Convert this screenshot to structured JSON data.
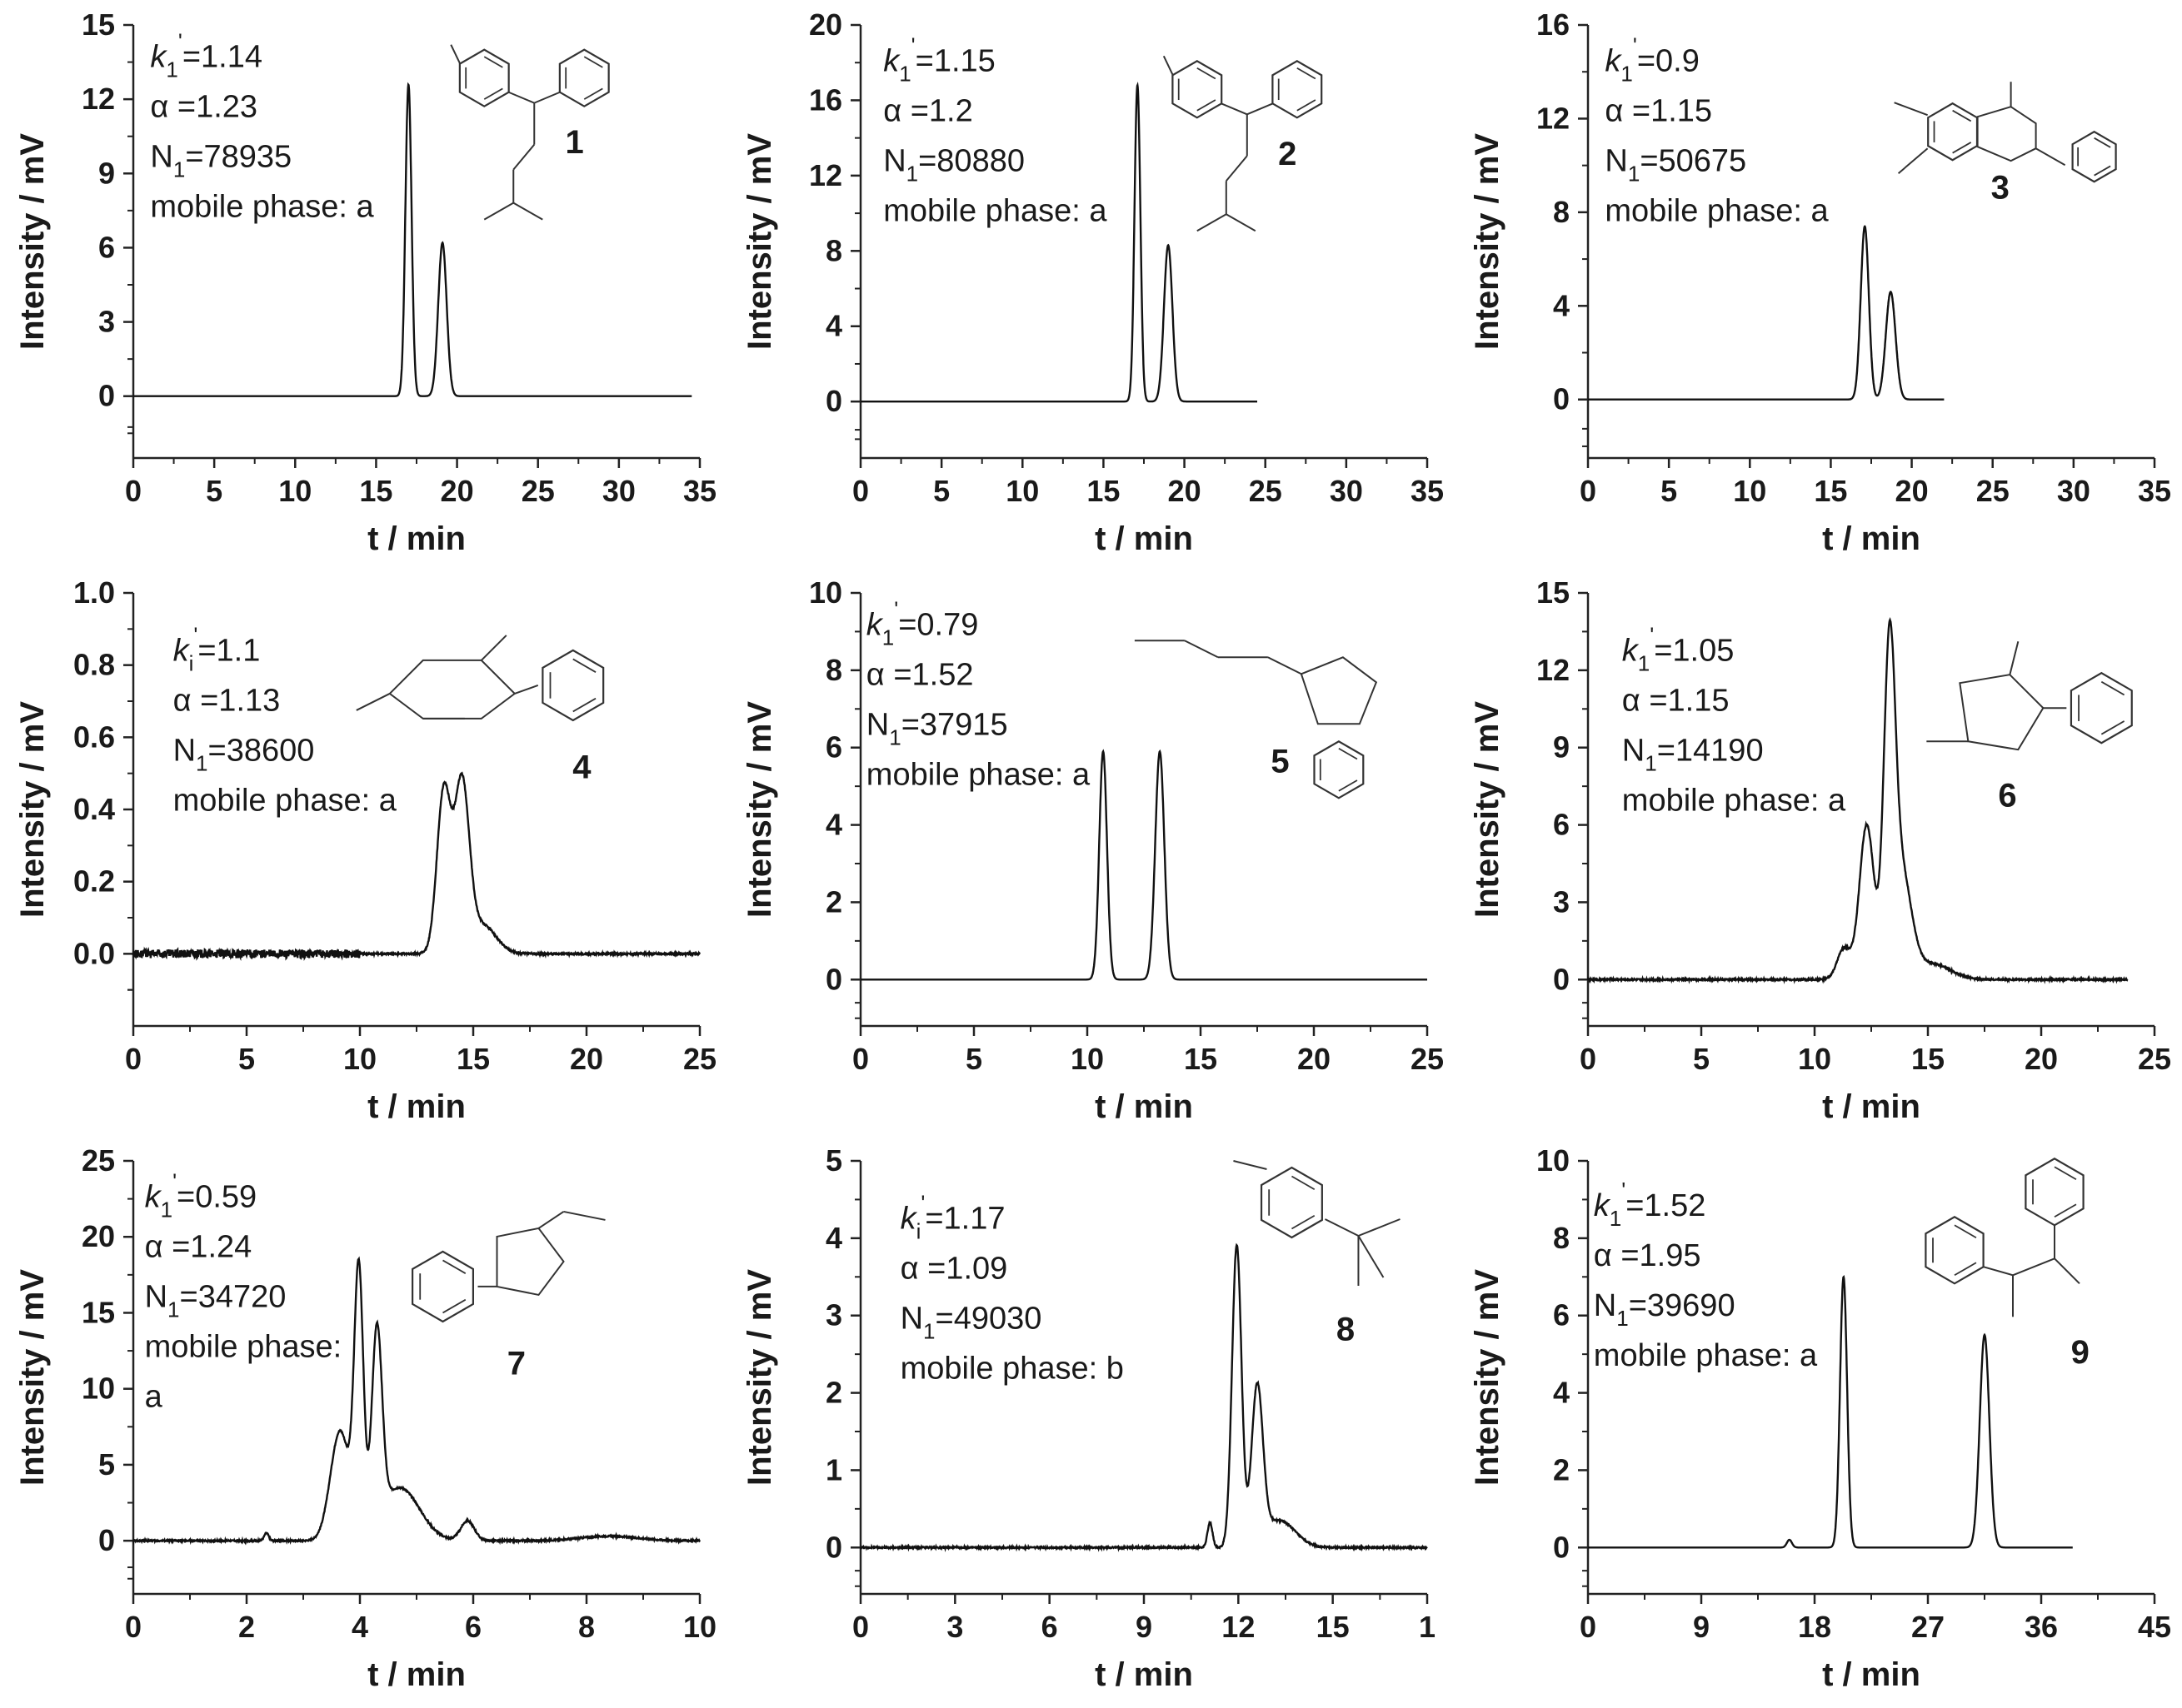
{
  "panels": [
    {
      "id": 1,
      "xlabel": "t / min",
      "ylabel": "Intensity / mV",
      "xticks": [
        "0",
        "5",
        "10",
        "15",
        "20",
        "25",
        "30",
        "35"
      ],
      "yticks": [
        "0",
        "3",
        "6",
        "9",
        "12",
        "15"
      ],
      "annotations": [
        {
          "sym": "k",
          "sub": "1",
          "sup": "'",
          "rest": "=1.14"
        },
        {
          "text": "α =1.23"
        },
        {
          "sym": "N",
          "sub": "1",
          "rest": "=78935"
        },
        {
          "text": "mobile phase: a"
        }
      ],
      "compound": "1",
      "chart_data": {
        "type": "line",
        "xlim": [
          0,
          35
        ],
        "ylim": [
          -2.5,
          15
        ],
        "x_end": 34.5,
        "peaks": [
          {
            "t": 17.0,
            "h": 12.6,
            "w": 0.19
          },
          {
            "t": 19.1,
            "h": 6.2,
            "w": 0.26
          }
        ],
        "noise": 0
      }
    },
    {
      "id": 2,
      "xlabel": "t / min",
      "ylabel": "Intensity / mV",
      "xticks": [
        "0",
        "5",
        "10",
        "15",
        "20",
        "25",
        "30",
        "35"
      ],
      "yticks": [
        "0",
        "4",
        "8",
        "12",
        "16",
        "20"
      ],
      "annotations": [
        {
          "sym": "k",
          "sub": "1",
          "sup": "'",
          "rest": "=1.15"
        },
        {
          "text": "α =1.2"
        },
        {
          "sym": "N",
          "sub": "1",
          "rest": "=80880"
        },
        {
          "text": "mobile phase: a"
        }
      ],
      "compound": "2",
      "chart_data": {
        "type": "line",
        "xlim": [
          0,
          35
        ],
        "ylim": [
          -3,
          20
        ],
        "x_end": 24.5,
        "peaks": [
          {
            "t": 17.1,
            "h": 16.8,
            "w": 0.18
          },
          {
            "t": 19.0,
            "h": 8.3,
            "w": 0.26
          }
        ],
        "noise": 0
      }
    },
    {
      "id": 3,
      "xlabel": "t / min",
      "ylabel": "Intensity / mV",
      "xticks": [
        "0",
        "5",
        "10",
        "15",
        "20",
        "25",
        "30",
        "35"
      ],
      "yticks": [
        "0",
        "4",
        "8",
        "12",
        "16"
      ],
      "annotations": [
        {
          "sym": "k",
          "sub": "1",
          "sup": "'",
          "rest": "=0.9"
        },
        {
          "text": "α =1.15"
        },
        {
          "sym": "N",
          "sub": "1",
          "rest": "=50675"
        },
        {
          "text": "mobile phase: a"
        }
      ],
      "compound": "3",
      "chart_data": {
        "type": "line",
        "xlim": [
          0,
          35
        ],
        "ylim": [
          -2.5,
          16
        ],
        "x_end": 22.0,
        "peaks": [
          {
            "t": 17.1,
            "h": 7.4,
            "w": 0.25
          },
          {
            "t": 18.7,
            "h": 4.6,
            "w": 0.3
          }
        ],
        "noise": 0
      }
    },
    {
      "id": 4,
      "xlabel": "t / min",
      "ylabel": "Intensity / mV",
      "xticks": [
        "0",
        "5",
        "10",
        "15",
        "20",
        "25"
      ],
      "yticks": [
        "0.0",
        "0.2",
        "0.4",
        "0.6",
        "0.8",
        "1.0"
      ],
      "annotations": [
        {
          "sym": "k",
          "sub": "i",
          "sup": "'",
          "rest": "=1.1"
        },
        {
          "text": "α =1.13"
        },
        {
          "sym": "N",
          "sub": "1",
          "rest": "=38600"
        },
        {
          "text": "mobile phase: a"
        }
      ],
      "compound": "4",
      "chart_data": {
        "type": "line",
        "xlim": [
          0,
          25
        ],
        "ylim": [
          -0.2,
          1.0
        ],
        "x_end": 25,
        "peaks": [
          {
            "t": 13.7,
            "h": 0.45,
            "w": 0.3
          },
          {
            "t": 14.5,
            "h": 0.46,
            "w": 0.32
          },
          {
            "t": 15.4,
            "h": 0.08,
            "w": 0.6
          }
        ],
        "noise": 0.012,
        "noise_until": 10
      }
    },
    {
      "id": 5,
      "xlabel": "t / min",
      "ylabel": "Intensity / mV",
      "xticks": [
        "0",
        "5",
        "10",
        "15",
        "20",
        "25"
      ],
      "yticks": [
        "0",
        "2",
        "4",
        "6",
        "8",
        "10"
      ],
      "annotations": [
        {
          "sym": "k",
          "sub": "1",
          "sup": "'",
          "rest": "=0.79"
        },
        {
          "text": "α =1.52"
        },
        {
          "sym": "N",
          "sub": "1",
          "rest": "=37915"
        },
        {
          "text": "mobile phase: a"
        }
      ],
      "compound": "5",
      "chart_data": {
        "type": "line",
        "xlim": [
          0,
          25
        ],
        "ylim": [
          -1.2,
          10
        ],
        "x_end": 25,
        "peaks": [
          {
            "t": 10.7,
            "h": 5.9,
            "w": 0.17
          },
          {
            "t": 13.2,
            "h": 5.9,
            "w": 0.2
          }
        ],
        "noise": 0
      }
    },
    {
      "id": 6,
      "xlabel": "t / min",
      "ylabel": "Intensity / mV",
      "xticks": [
        "0",
        "5",
        "10",
        "15",
        "20",
        "25"
      ],
      "yticks": [
        "0",
        "3",
        "6",
        "9",
        "12",
        "15"
      ],
      "annotations": [
        {
          "sym": "k",
          "sub": "1",
          "sup": "'",
          "rest": "=1.05"
        },
        {
          "text": "α =1.15"
        },
        {
          "sym": "N",
          "sub": "1",
          "rest": "=14190"
        },
        {
          "text": "mobile phase: a"
        }
      ],
      "compound": "6",
      "chart_data": {
        "type": "line",
        "xlim": [
          0,
          25
        ],
        "ylim": [
          -1.8,
          15
        ],
        "x_end": 23.8,
        "peaks": [
          {
            "t": 11.3,
            "h": 1.2,
            "w": 0.3
          },
          {
            "t": 12.3,
            "h": 6.0,
            "w": 0.32
          },
          {
            "t": 13.3,
            "h": 11.5,
            "w": 0.25
          },
          {
            "t": 13.8,
            "h": 4.2,
            "w": 0.45
          },
          {
            "t": 15.2,
            "h": 0.6,
            "w": 0.8
          }
        ],
        "noise": 0.03
      }
    },
    {
      "id": 7,
      "xlabel": "t / min",
      "ylabel": "Intensity / mV",
      "xticks": [
        "0",
        "2",
        "4",
        "6",
        "8",
        "10"
      ],
      "yticks": [
        "0",
        "5",
        "10",
        "15",
        "20",
        "25"
      ],
      "annotations": [
        {
          "sym": "k",
          "sub": "1",
          "sup": "'",
          "rest": "=0.59"
        },
        {
          "text": "α =1.24"
        },
        {
          "sym": "N",
          "sub": "1",
          "rest": "=34720"
        },
        {
          "text": "mobile phase:"
        },
        {
          "text": " a"
        }
      ],
      "compound": "7",
      "chart_data": {
        "type": "line",
        "xlim": [
          0,
          10
        ],
        "ylim": [
          -3.5,
          25
        ],
        "x_end": 10,
        "peaks": [
          {
            "t": 2.35,
            "h": 0.5,
            "w": 0.04
          },
          {
            "t": 3.65,
            "h": 7.2,
            "w": 0.17
          },
          {
            "t": 3.98,
            "h": 17.0,
            "w": 0.08
          },
          {
            "t": 4.3,
            "h": 12.5,
            "w": 0.09
          },
          {
            "t": 4.7,
            "h": 3.5,
            "w": 0.35
          },
          {
            "t": 5.9,
            "h": 1.3,
            "w": 0.12
          },
          {
            "t": 8.4,
            "h": 0.3,
            "w": 0.5
          }
        ],
        "noise": 0.05
      }
    },
    {
      "id": 8,
      "xlabel": "t / min",
      "ylabel": "Intensity / mV",
      "xticks": [
        "0",
        "3",
        "6",
        "9",
        "12",
        "15",
        "1"
      ],
      "yticks": [
        "0",
        "1",
        "2",
        "3",
        "4",
        "5"
      ],
      "annotations": [
        {
          "sym": "k",
          "sub": "i",
          "sup": "'",
          "rest": "=1.17"
        },
        {
          "text": "α =1.09"
        },
        {
          "sym": "N",
          "sub": "1",
          "rest": "=49030"
        },
        {
          "text": "mobile phase: b"
        }
      ],
      "compound": "8",
      "chart_data": {
        "type": "line",
        "xlim": [
          0,
          18
        ],
        "ylim": [
          -0.6,
          5
        ],
        "x_end": 18,
        "peaks": [
          {
            "t": 11.1,
            "h": 0.32,
            "w": 0.08
          },
          {
            "t": 11.95,
            "h": 3.9,
            "w": 0.15
          },
          {
            "t": 12.6,
            "h": 2.0,
            "w": 0.18
          },
          {
            "t": 13.3,
            "h": 0.35,
            "w": 0.5
          }
        ],
        "noise": 0.01
      }
    },
    {
      "id": 9,
      "xlabel": "t / min",
      "ylabel": "Intensity / mV",
      "xticks": [
        "0",
        "9",
        "18",
        "27",
        "36",
        "45"
      ],
      "yticks": [
        "0",
        "2",
        "4",
        "6",
        "8",
        "10"
      ],
      "annotations": [
        {
          "sym": "k",
          "sub": "1",
          "sup": "'",
          "rest": "=1.52"
        },
        {
          "text": "α =1.95"
        },
        {
          "sym": "N",
          "sub": "1",
          "rest": "=39690"
        },
        {
          "text": "mobile phase: a"
        }
      ],
      "compound": "9",
      "chart_data": {
        "type": "line",
        "xlim": [
          0,
          45
        ],
        "ylim": [
          -1.2,
          10
        ],
        "x_end": 38.5,
        "peaks": [
          {
            "t": 16.0,
            "h": 0.2,
            "w": 0.2
          },
          {
            "t": 20.3,
            "h": 7.0,
            "w": 0.28
          },
          {
            "t": 31.5,
            "h": 5.5,
            "w": 0.38
          }
        ],
        "noise": 0
      }
    }
  ]
}
